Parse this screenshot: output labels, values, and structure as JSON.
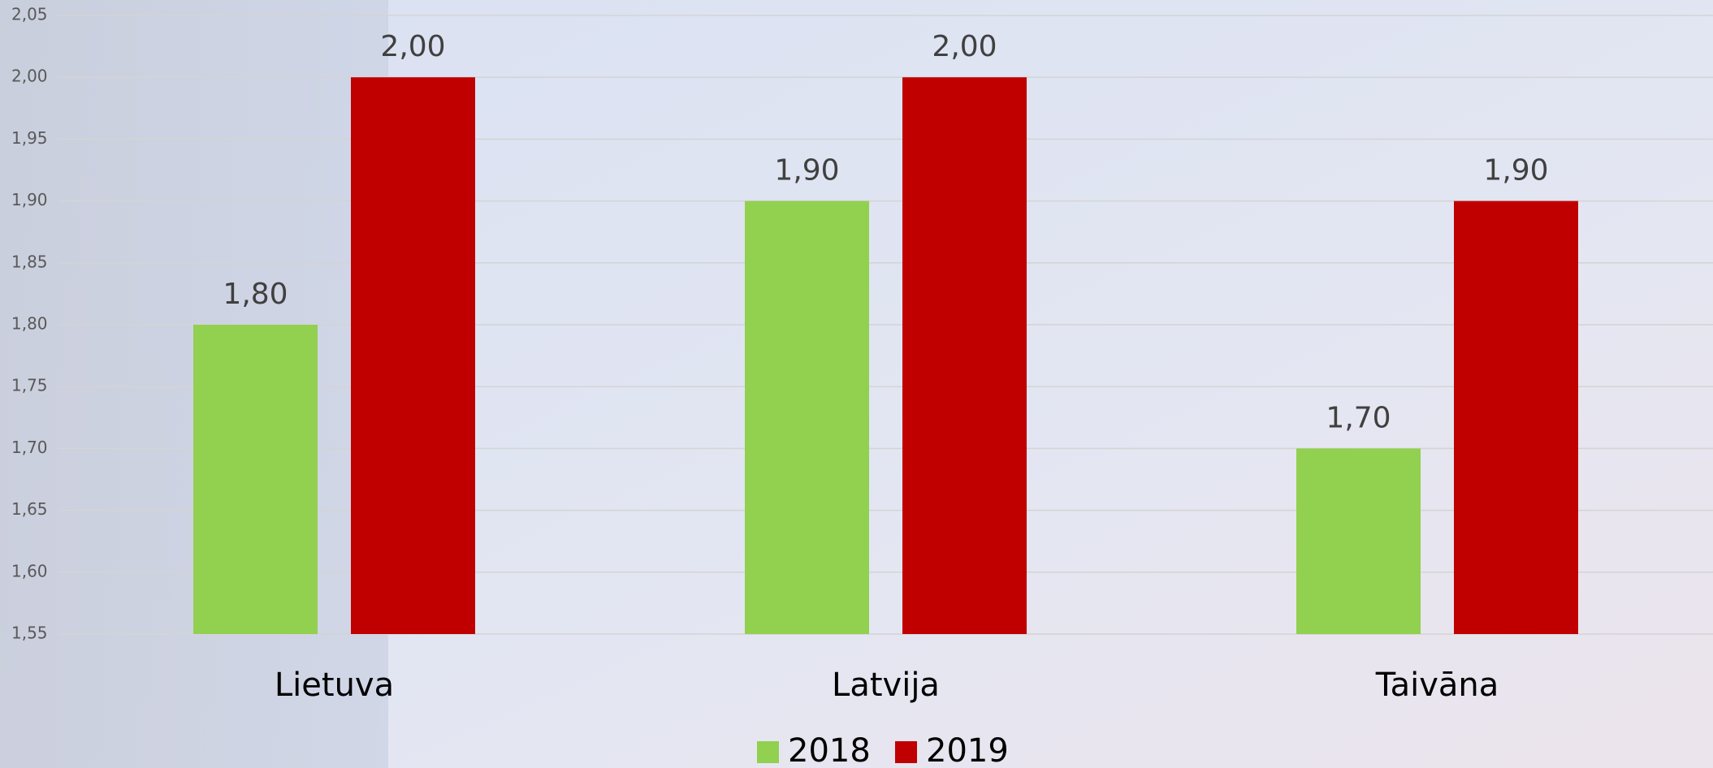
{
  "chart_data": {
    "type": "bar",
    "categories": [
      "Lietuva",
      "Latvija",
      "Taivāna"
    ],
    "series": [
      {
        "name": "2018",
        "color": "#92d050",
        "values": [
          1.8,
          1.9,
          1.7
        ],
        "value_labels": [
          "1,80",
          "1,90",
          "1,70"
        ]
      },
      {
        "name": "2019",
        "color": "#c00000",
        "values": [
          2.0,
          2.0,
          1.9
        ],
        "value_labels": [
          "2,00",
          "2,00",
          "1,90"
        ]
      }
    ],
    "ylim": [
      1.55,
      2.05
    ],
    "yticks": [
      {
        "value": 1.55,
        "label": "1,55"
      },
      {
        "value": 1.6,
        "label": "1,60"
      },
      {
        "value": 1.65,
        "label": "1,65"
      },
      {
        "value": 1.7,
        "label": "1,70"
      },
      {
        "value": 1.75,
        "label": "1,75"
      },
      {
        "value": 1.8,
        "label": "1,80"
      },
      {
        "value": 1.85,
        "label": "1,85"
      },
      {
        "value": 1.9,
        "label": "1,90"
      },
      {
        "value": 1.95,
        "label": "1,95"
      },
      {
        "value": 2.0,
        "label": "2,00"
      },
      {
        "value": 2.05,
        "label": "2,05"
      }
    ],
    "grid": true,
    "legend": "bottom"
  }
}
